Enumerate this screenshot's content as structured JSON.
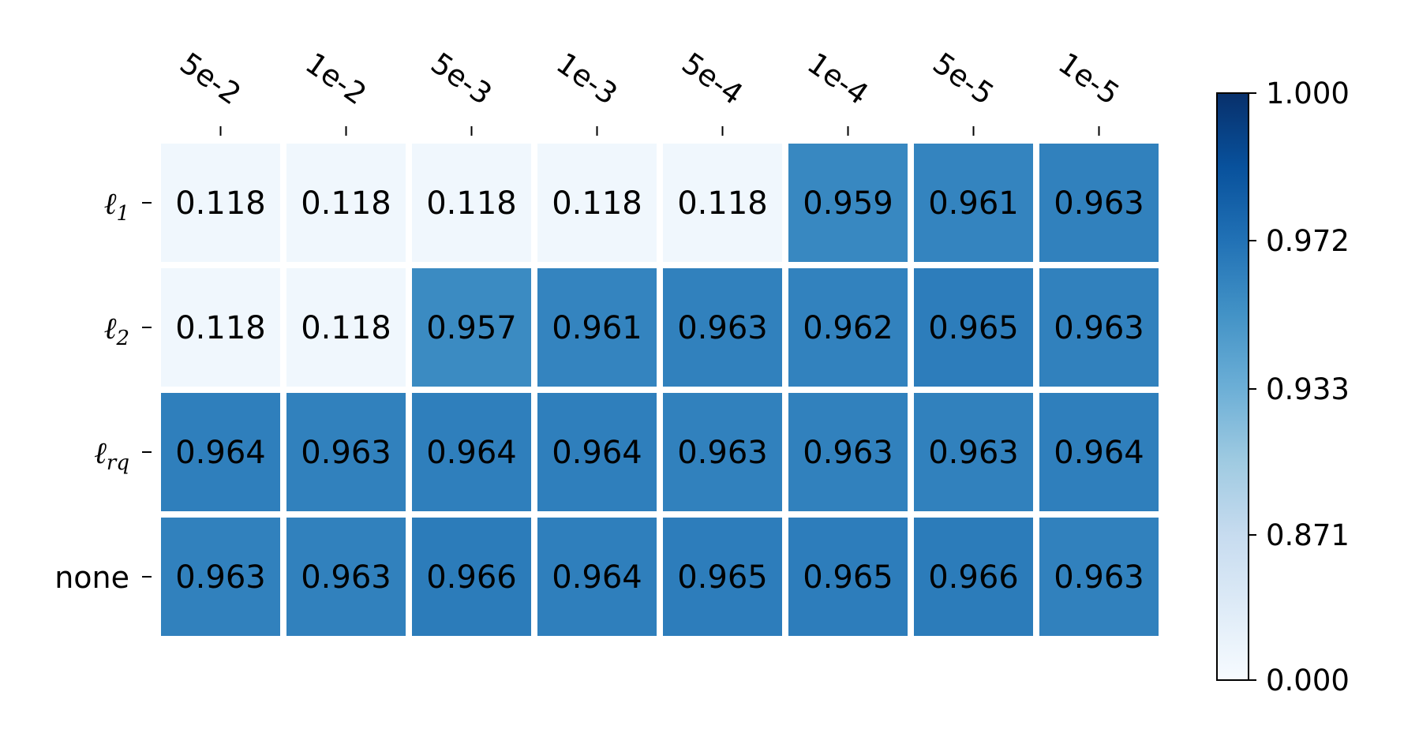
{
  "chart_data": {
    "type": "heatmap",
    "title": "",
    "xlabel": "",
    "ylabel": "",
    "columns": [
      "5e-2",
      "1e-2",
      "5e-3",
      "1e-3",
      "5e-4",
      "1e-4",
      "5e-5",
      "1e-5"
    ],
    "rows": [
      {
        "main": "ℓ",
        "sub": "1"
      },
      {
        "main": "ℓ",
        "sub": "2"
      },
      {
        "main": "ℓ",
        "sub": "rq"
      },
      {
        "main": "none",
        "sub": ""
      }
    ],
    "values": [
      [
        0.118,
        0.118,
        0.118,
        0.118,
        0.118,
        0.959,
        0.961,
        0.963
      ],
      [
        0.118,
        0.118,
        0.957,
        0.961,
        0.963,
        0.962,
        0.965,
        0.963
      ],
      [
        0.964,
        0.963,
        0.964,
        0.964,
        0.963,
        0.963,
        0.963,
        0.964
      ],
      [
        0.963,
        0.963,
        0.966,
        0.964,
        0.965,
        0.965,
        0.966,
        0.963
      ]
    ],
    "value_labels": [
      [
        "0.118",
        "0.118",
        "0.118",
        "0.118",
        "0.118",
        "0.959",
        "0.961",
        "0.963"
      ],
      [
        "0.118",
        "0.118",
        "0.957",
        "0.961",
        "0.963",
        "0.962",
        "0.965",
        "0.963"
      ],
      [
        "0.964",
        "0.963",
        "0.964",
        "0.964",
        "0.963",
        "0.963",
        "0.963",
        "0.964"
      ],
      [
        "0.963",
        "0.963",
        "0.966",
        "0.964",
        "0.965",
        "0.965",
        "0.966",
        "0.963"
      ]
    ],
    "colorbar": {
      "ticks": [
        1.0,
        0.972,
        0.933,
        0.871,
        0.0
      ],
      "tick_labels": [
        "1.000",
        "0.972",
        "0.933",
        "0.871",
        "0.000"
      ],
      "colormap": "Blues"
    },
    "x_tick_position": "top",
    "grid": false
  }
}
